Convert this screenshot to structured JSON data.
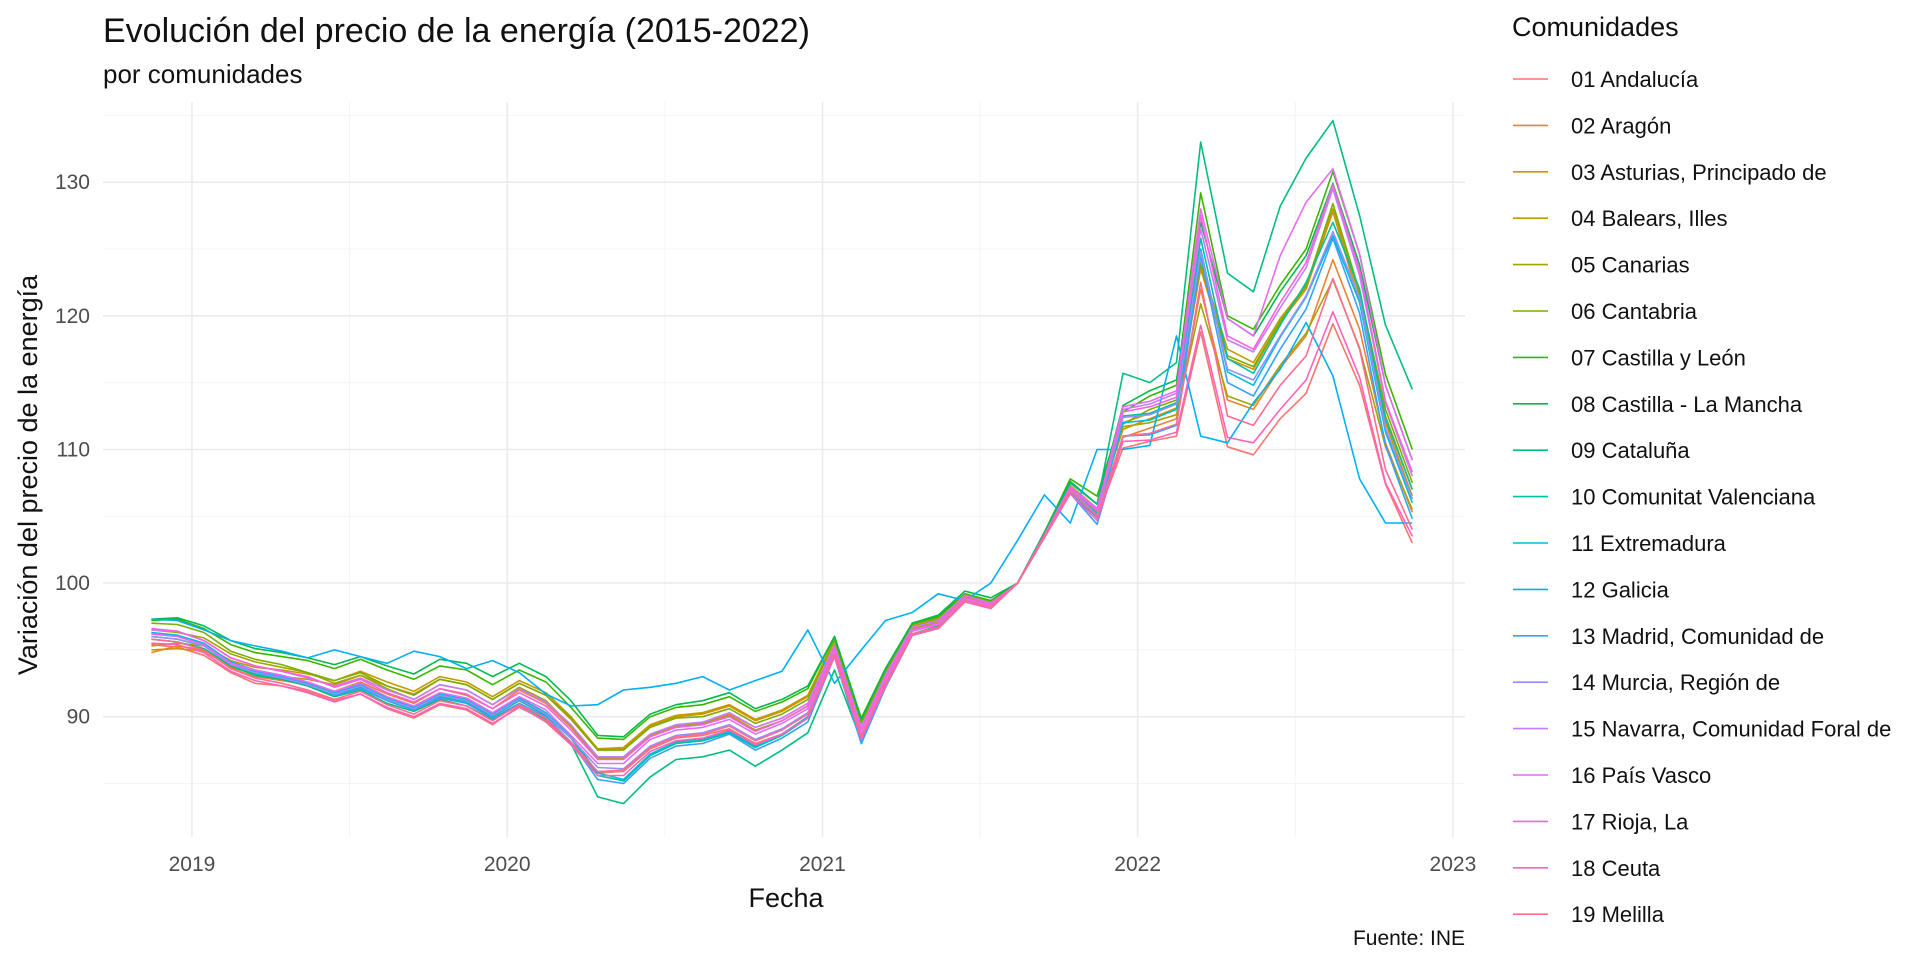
{
  "chart_data": {
    "type": "line",
    "title": "Evolución del precio de la energía (2015-2022)",
    "subtitle": "por comunidades",
    "xlabel": "Fecha",
    "ylabel": "Variación del precio de la energía",
    "caption": "Fuente: INE",
    "legend_title": "Comunidades",
    "legend_position": "right",
    "grid": true,
    "x_ticks": [
      "2019",
      "2020",
      "2021",
      "2022",
      "2023"
    ],
    "y_ticks": [
      90,
      100,
      110,
      120,
      130
    ],
    "xlim": [
      "2018-09-20",
      "2023-01-15"
    ],
    "ylim": [
      81,
      136
    ],
    "x": [
      "2018-11",
      "2018-12",
      "2019-01",
      "2019-02",
      "2019-03",
      "2019-04",
      "2019-05",
      "2019-06",
      "2019-07",
      "2019-08",
      "2019-09",
      "2019-10",
      "2019-11",
      "2019-12",
      "2020-01",
      "2020-02",
      "2020-03",
      "2020-04",
      "2020-05",
      "2020-06",
      "2020-07",
      "2020-08",
      "2020-09",
      "2020-10",
      "2020-11",
      "2020-12",
      "2021-01",
      "2021-02",
      "2021-03",
      "2021-04",
      "2021-05",
      "2021-06",
      "2021-07",
      "2021-08",
      "2021-09",
      "2021-10",
      "2021-11",
      "2021-12",
      "2022-01",
      "2022-02",
      "2022-03",
      "2022-04",
      "2022-05",
      "2022-06",
      "2022-07",
      "2022-08",
      "2022-09",
      "2022-10",
      "2022-11"
    ],
    "series": [
      {
        "name": "01 Andalucía",
        "color": "#F8766D",
        "values": [
          95.4,
          95.2,
          94.6,
          93.3,
          92.5,
          92.3,
          91.9,
          91.2,
          91.7,
          90.6,
          89.9,
          90.9,
          90.5,
          89.4,
          90.8,
          89.6,
          87.9,
          85.8,
          85.9,
          87.6,
          88.4,
          88.6,
          89.1,
          88.0,
          88.7,
          89.9,
          94.6,
          88.4,
          92.4,
          96.1,
          96.6,
          98.6,
          98.1,
          100.0,
          103.5,
          106.8,
          104.9,
          110.1,
          110.6,
          111.0,
          118.8,
          110.2,
          109.6,
          112.3,
          114.2,
          119.4,
          114.8,
          107.4,
          103.0
        ]
      },
      {
        "name": "02 Aragón",
        "color": "#EA8331",
        "values": [
          94.8,
          95.3,
          95.0,
          93.6,
          93.0,
          92.7,
          92.4,
          91.9,
          92.6,
          91.7,
          91.0,
          92.1,
          91.6,
          90.6,
          92.0,
          91.0,
          89.2,
          86.9,
          87.0,
          88.6,
          89.3,
          89.5,
          90.2,
          89.2,
          89.9,
          91.0,
          95.4,
          89.2,
          93.0,
          96.7,
          97.2,
          99.0,
          98.5,
          100.0,
          103.5,
          107.0,
          105.3,
          110.9,
          111.6,
          112.3,
          122.0,
          113.7,
          113.0,
          116.1,
          118.5,
          124.2,
          119.0,
          110.5,
          105.3
        ]
      },
      {
        "name": "03 Asturias, Principado de",
        "color": "#D89000",
        "values": [
          95.0,
          95.1,
          94.9,
          93.7,
          93.2,
          93.0,
          92.8,
          92.4,
          93.1,
          92.3,
          91.7,
          92.8,
          92.4,
          91.3,
          92.5,
          91.6,
          89.8,
          87.5,
          87.6,
          89.3,
          90.0,
          90.2,
          90.8,
          89.7,
          90.4,
          91.5,
          95.8,
          89.6,
          93.4,
          96.9,
          97.4,
          99.1,
          98.6,
          100.0,
          103.6,
          107.3,
          105.6,
          111.5,
          112.3,
          113.1,
          123.5,
          116.8,
          116.0,
          119.5,
          122.0,
          127.8,
          121.0,
          112.0,
          106.5
        ]
      },
      {
        "name": "04 Balears, Illes",
        "color": "#C09B00",
        "values": [
          95.3,
          95.5,
          95.3,
          94.2,
          93.7,
          93.5,
          93.2,
          92.7,
          93.4,
          92.6,
          91.9,
          93.0,
          92.6,
          91.5,
          92.7,
          91.8,
          90.0,
          87.6,
          87.7,
          89.4,
          90.1,
          90.3,
          90.9,
          89.8,
          90.5,
          91.6,
          95.8,
          89.6,
          93.3,
          96.8,
          97.3,
          99.0,
          98.6,
          100.0,
          103.7,
          107.5,
          105.9,
          112.0,
          112.7,
          113.5,
          124.0,
          117.5,
          116.5,
          119.8,
          122.3,
          128.0,
          121.5,
          112.5,
          107.0
        ]
      },
      {
        "name": "05 Canarias",
        "color": "#A3A500",
        "values": [
          96.5,
          96.3,
          95.9,
          94.7,
          94.1,
          93.7,
          93.3,
          92.5,
          93.1,
          92.1,
          91.3,
          92.4,
          92.0,
          90.9,
          92.2,
          91.2,
          89.3,
          86.9,
          86.9,
          88.6,
          89.3,
          89.5,
          90.1,
          89.0,
          89.7,
          90.8,
          95.3,
          89.1,
          93.0,
          96.6,
          97.1,
          98.9,
          98.4,
          100.0,
          103.5,
          107.1,
          105.3,
          111.7,
          112.0,
          112.6,
          120.9,
          114.0,
          113.3,
          116.3,
          118.7,
          122.7,
          117.6,
          110.2,
          105.5
        ]
      },
      {
        "name": "06 Cantabria",
        "color": "#7CAE00",
        "values": [
          97.0,
          96.9,
          96.3,
          94.9,
          94.3,
          93.9,
          93.3,
          92.7,
          93.3,
          92.3,
          91.6,
          92.8,
          92.4,
          91.3,
          92.5,
          91.6,
          89.9,
          87.5,
          87.5,
          89.2,
          89.9,
          90.0,
          90.6,
          89.5,
          90.2,
          91.3,
          95.7,
          89.5,
          93.3,
          96.9,
          97.4,
          99.2,
          98.6,
          100.0,
          103.7,
          107.5,
          105.9,
          111.9,
          113.0,
          113.7,
          123.8,
          117.0,
          116.2,
          119.6,
          122.2,
          128.4,
          121.8,
          113.0,
          107.5
        ]
      },
      {
        "name": "07 Castilla y León",
        "color": "#39B600",
        "values": [
          97.2,
          97.3,
          96.6,
          95.4,
          94.8,
          94.5,
          94.2,
          93.6,
          94.3,
          93.5,
          92.8,
          93.8,
          93.5,
          92.4,
          93.5,
          92.6,
          90.7,
          88.4,
          88.3,
          90.0,
          90.7,
          90.9,
          91.5,
          90.4,
          91.1,
          92.1,
          96.0,
          89.9,
          93.6,
          97.0,
          97.5,
          99.2,
          98.7,
          100.0,
          103.8,
          107.8,
          106.5,
          112.8,
          114.0,
          114.8,
          129.2,
          120.0,
          119.0,
          122.3,
          125.0,
          130.8,
          124.6,
          115.6,
          110.0
        ]
      },
      {
        "name": "08 Castilla - La Mancha",
        "color": "#00BB4E",
        "values": [
          97.3,
          97.4,
          96.8,
          95.7,
          95.1,
          94.8,
          94.4,
          93.9,
          94.5,
          93.8,
          93.2,
          94.3,
          94.0,
          93.0,
          94.0,
          93.0,
          91.2,
          88.6,
          88.5,
          90.2,
          90.9,
          91.2,
          91.8,
          90.6,
          91.3,
          92.3,
          96.0,
          89.8,
          93.6,
          97.0,
          97.6,
          99.4,
          98.9,
          100.0,
          103.8,
          107.6,
          105.9,
          113.3,
          114.4,
          115.2,
          127.0,
          119.8,
          118.5,
          121.8,
          124.5,
          129.9,
          123.8,
          114.8,
          109.2
        ]
      },
      {
        "name": "09 Cataluña",
        "color": "#00BF7D",
        "values": [
          95.8,
          95.6,
          95.1,
          93.8,
          93.1,
          92.8,
          92.3,
          91.5,
          92.0,
          91.0,
          90.4,
          91.3,
          90.8,
          89.8,
          90.9,
          89.8,
          88.0,
          84.0,
          83.5,
          85.5,
          86.8,
          87.0,
          87.5,
          86.3,
          87.5,
          88.8,
          93.5,
          88.2,
          92.4,
          96.2,
          96.8,
          98.8,
          98.3,
          100.0,
          103.6,
          107.5,
          105.9,
          115.7,
          115.0,
          116.5,
          133.0,
          123.2,
          121.8,
          128.2,
          131.8,
          134.6,
          127.5,
          119.3,
          114.5
        ]
      },
      {
        "name": "10 Comunitat Valenciana",
        "color": "#00C1A3",
        "values": [
          96.0,
          95.8,
          95.3,
          93.9,
          93.2,
          92.9,
          92.4,
          91.6,
          92.2,
          91.2,
          90.5,
          91.5,
          91.1,
          90.0,
          91.2,
          90.1,
          88.4,
          85.6,
          85.2,
          87.1,
          88.0,
          88.2,
          88.8,
          87.7,
          88.6,
          89.9,
          94.5,
          88.0,
          92.2,
          96.1,
          96.6,
          98.6,
          98.2,
          100.0,
          103.5,
          107.0,
          105.2,
          112.5,
          112.7,
          113.5,
          125.8,
          116.8,
          115.7,
          119.3,
          122.5,
          127.0,
          122.0,
          112.3,
          107.0
        ]
      },
      {
        "name": "11 Extremadura",
        "color": "#00BCD8",
        "values": [
          96.3,
          96.1,
          95.5,
          94.1,
          93.5,
          93.1,
          92.6,
          91.8,
          92.4,
          91.4,
          90.7,
          91.7,
          91.3,
          90.2,
          91.4,
          90.3,
          88.5,
          85.8,
          85.3,
          87.2,
          88.1,
          88.3,
          88.9,
          87.8,
          88.7,
          90.0,
          94.7,
          88.1,
          92.3,
          96.2,
          96.7,
          98.7,
          98.3,
          100.0,
          103.5,
          106.8,
          104.9,
          112.0,
          112.2,
          113.0,
          125.0,
          115.8,
          114.8,
          118.4,
          121.4,
          126.0,
          121.0,
          111.3,
          106.0
        ]
      },
      {
        "name": "12 Galicia",
        "color": "#00B0F6",
        "values": [
          97.3,
          97.2,
          96.5,
          95.7,
          95.3,
          94.9,
          94.4,
          95.0,
          94.5,
          94.0,
          94.9,
          94.5,
          93.6,
          94.2,
          93.3,
          91.7,
          90.8,
          90.9,
          92.0,
          92.2,
          92.5,
          93.0,
          92.0,
          92.7,
          93.4,
          96.5,
          92.5,
          95.0,
          97.2,
          97.8,
          99.2,
          98.7,
          100.0,
          103.2,
          106.6,
          104.5,
          110.0,
          110.0,
          110.3,
          118.5,
          111.0,
          110.5,
          113.5,
          116.0,
          119.5,
          115.5,
          107.8,
          104.5,
          104.5
        ]
      },
      {
        "name": "13 Madrid, Comunidad de",
        "color": "#35A2FF",
        "values": [
          96.2,
          96.0,
          95.4,
          94.0,
          93.4,
          93.0,
          92.5,
          91.6,
          92.1,
          91.2,
          90.5,
          91.4,
          91.0,
          89.9,
          91.0,
          90.0,
          88.1,
          85.3,
          85.0,
          86.9,
          87.8,
          88.0,
          88.7,
          87.5,
          88.4,
          89.6,
          94.5,
          88.0,
          92.2,
          96.1,
          96.6,
          98.6,
          98.2,
          100.0,
          103.4,
          106.7,
          104.4,
          111.0,
          111.1,
          111.8,
          124.5,
          115.0,
          114.0,
          117.5,
          120.5,
          125.8,
          120.2,
          110.3,
          104.8
        ]
      },
      {
        "name": "14 Murcia, Región de",
        "color": "#9590FF",
        "values": [
          96.0,
          95.8,
          95.3,
          93.9,
          93.3,
          92.9,
          92.4,
          91.7,
          92.3,
          91.3,
          90.6,
          91.6,
          91.2,
          90.1,
          91.3,
          90.2,
          88.4,
          86.2,
          86.1,
          87.8,
          88.6,
          88.8,
          89.4,
          88.3,
          89.1,
          90.3,
          94.8,
          88.5,
          92.5,
          96.2,
          96.7,
          98.7,
          98.2,
          100.0,
          103.5,
          107.0,
          105.1,
          112.4,
          112.6,
          113.4,
          124.8,
          116.0,
          115.2,
          118.5,
          121.5,
          126.3,
          121.3,
          111.6,
          106.3
        ]
      },
      {
        "name": "15 Navarra, Comunidad Foral de",
        "color": "#C77CFF",
        "values": [
          96.5,
          96.4,
          95.7,
          94.4,
          93.8,
          93.4,
          92.9,
          92.3,
          92.9,
          92.0,
          91.3,
          92.4,
          92.0,
          90.9,
          92.1,
          91.1,
          89.4,
          87.0,
          87.0,
          88.7,
          89.4,
          89.6,
          90.3,
          89.2,
          89.9,
          91.0,
          95.3,
          89.2,
          93.1,
          96.7,
          97.2,
          99.1,
          98.5,
          100.0,
          103.6,
          107.2,
          105.6,
          113.0,
          113.4,
          114.2,
          126.5,
          118.2,
          117.3,
          120.6,
          123.6,
          129.5,
          123.0,
          113.5,
          108.0
        ]
      },
      {
        "name": "16 País Vasco",
        "color": "#E76BF3",
        "values": [
          96.2,
          96.0,
          95.4,
          94.0,
          93.5,
          93.1,
          92.6,
          91.9,
          92.5,
          91.5,
          90.8,
          91.8,
          91.4,
          90.3,
          91.5,
          90.5,
          88.6,
          86.5,
          86.5,
          88.3,
          89.0,
          89.2,
          89.8,
          88.7,
          89.5,
          90.6,
          95.0,
          88.7,
          92.7,
          96.4,
          96.9,
          98.8,
          98.3,
          100.0,
          103.6,
          107.2,
          105.5,
          113.2,
          113.6,
          114.4,
          128.0,
          119.8,
          118.5,
          124.5,
          128.5,
          131.0,
          124.6,
          114.8,
          109.2
        ]
      },
      {
        "name": "17 Rioja, La",
        "color": "#FA62DB",
        "values": [
          96.6,
          96.4,
          95.7,
          94.4,
          93.8,
          93.4,
          93.0,
          92.2,
          92.8,
          91.8,
          91.1,
          92.1,
          91.7,
          90.6,
          91.8,
          90.8,
          89.0,
          86.8,
          86.8,
          88.5,
          89.2,
          89.4,
          90.0,
          88.9,
          89.7,
          90.8,
          95.1,
          89.0,
          92.9,
          96.5,
          97.0,
          98.9,
          98.4,
          100.0,
          103.6,
          107.1,
          105.4,
          112.8,
          113.2,
          113.9,
          127.5,
          118.5,
          117.5,
          121.0,
          124.0,
          129.8,
          123.4,
          113.6,
          108.3
        ]
      },
      {
        "name": "18 Ceuta",
        "color": "#FF62BC",
        "values": [
          95.5,
          95.4,
          94.8,
          93.4,
          92.7,
          92.3,
          91.8,
          91.1,
          91.7,
          90.7,
          90.0,
          91.0,
          90.6,
          89.5,
          90.7,
          89.7,
          87.9,
          85.6,
          85.6,
          87.4,
          88.2,
          88.4,
          89.0,
          87.9,
          88.7,
          89.9,
          94.5,
          88.3,
          92.3,
          96.1,
          96.6,
          98.6,
          98.1,
          100.0,
          103.4,
          106.7,
          104.7,
          110.6,
          110.7,
          111.3,
          119.3,
          110.9,
          110.5,
          113.0,
          115.2,
          120.3,
          115.4,
          107.5,
          103.5
        ]
      },
      {
        "name": "19 Melilla",
        "color": "#FF6C91",
        "values": [
          95.8,
          95.6,
          95.0,
          93.6,
          92.9,
          92.5,
          92.0,
          91.3,
          91.9,
          90.9,
          90.2,
          91.2,
          90.8,
          89.7,
          90.9,
          89.9,
          88.1,
          85.9,
          86.0,
          87.7,
          88.5,
          88.7,
          89.3,
          88.2,
          89.0,
          90.2,
          94.7,
          88.5,
          92.5,
          96.2,
          96.7,
          98.7,
          98.2,
          100.0,
          103.5,
          106.9,
          105.0,
          111.0,
          111.2,
          111.9,
          122.5,
          112.5,
          111.8,
          114.8,
          117.0,
          122.8,
          117.5,
          108.5,
          104.0
        ]
      }
    ]
  }
}
